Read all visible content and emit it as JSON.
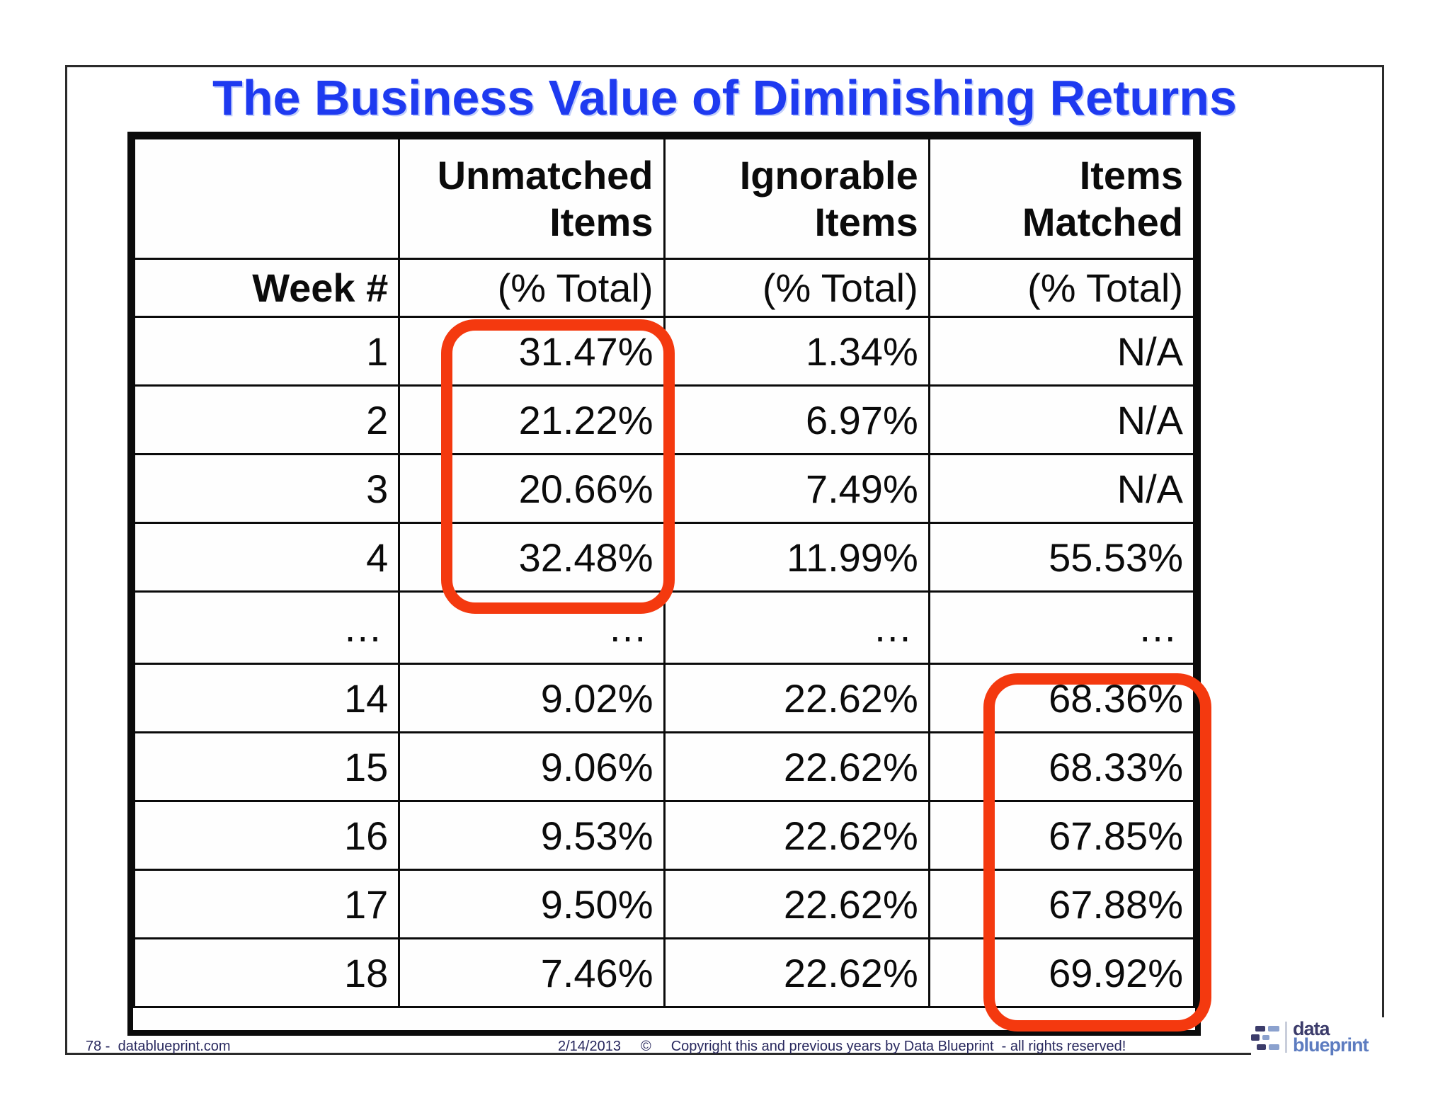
{
  "slide": {
    "title": "The Business Value of Diminishing Returns",
    "title_color": "#1e3af0",
    "highlight_color": "#f4390f"
  },
  "table": {
    "column_headers": [
      {
        "line1": "",
        "line2": "",
        "subheader": "Week #"
      },
      {
        "line1": "Unmatched",
        "line2": "Items",
        "subheader": "(% Total)"
      },
      {
        "line1": "Ignorable",
        "line2": "Items",
        "subheader": "(% Total)"
      },
      {
        "line1": "Items",
        "line2": "Matched",
        "subheader": "(% Total)"
      }
    ],
    "rows": [
      [
        "1",
        "31.47%",
        "1.34%",
        "N/A"
      ],
      [
        "2",
        "21.22%",
        "6.97%",
        "N/A"
      ],
      [
        "3",
        "20.66%",
        "7.49%",
        "N/A"
      ],
      [
        "4",
        "32.48%",
        "11.99%",
        "55.53%"
      ],
      [
        "…",
        "…",
        "…",
        "…"
      ],
      [
        "14",
        "9.02%",
        "22.62%",
        "68.36%"
      ],
      [
        "15",
        "9.06%",
        "22.62%",
        "68.33%"
      ],
      [
        "16",
        "9.53%",
        "22.62%",
        "67.85%"
      ],
      [
        "17",
        "9.50%",
        "22.62%",
        "67.88%"
      ],
      [
        "18",
        "7.46%",
        "22.62%",
        "69.92%"
      ]
    ]
  },
  "footer": {
    "page_label": "78 -  datablueprint.com",
    "date": "2/14/2013",
    "copyright_symbol": "©",
    "copyright_text": "Copyright this and previous years by Data Blueprint  - all rights reserved!"
  },
  "logo": {
    "line1": "data",
    "line2": "blueprint"
  }
}
